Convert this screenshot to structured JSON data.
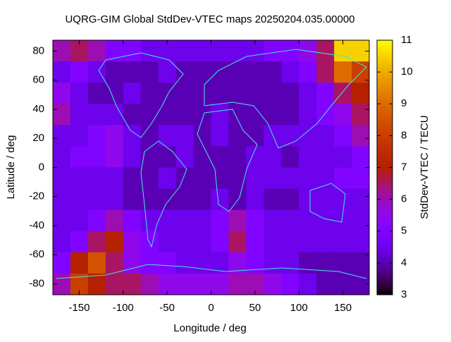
{
  "chart_data": {
    "type": "heatmap",
    "title": "UQRG-GIM Global StdDev-VTEC maps 20250204.035.00000",
    "x_label": "Longitude / deg",
    "y_label": "Latitude / deg",
    "colorbar_label": "StdDev-VTEC / TECU",
    "x": [
      -180,
      -160,
      -140,
      -120,
      -100,
      -80,
      -60,
      -40,
      -20,
      0,
      20,
      40,
      60,
      80,
      100,
      120,
      140,
      160,
      180
    ],
    "y": [
      87.5,
      72.9,
      58.3,
      43.75,
      29.2,
      14.6,
      0,
      -14.6,
      -29.2,
      -43.75,
      -58.3,
      -72.9,
      -87.5
    ],
    "z": [
      [
        6,
        6.5,
        6,
        5,
        5,
        4.5,
        4.5,
        4.5,
        4.5,
        4.5,
        4.5,
        4.5,
        5,
        5,
        5.5,
        6.5,
        10.5,
        10.5
      ],
      [
        4.5,
        5,
        4.5,
        4,
        4,
        4,
        4.5,
        4,
        4,
        4,
        4,
        4,
        4,
        4.5,
        5,
        6.5,
        9,
        8
      ],
      [
        5.5,
        4.5,
        4,
        4,
        4.5,
        4,
        4,
        4,
        4,
        4,
        4,
        4,
        4,
        4,
        4.5,
        5,
        6.5,
        7
      ],
      [
        6,
        4.5,
        4.5,
        4.5,
        4,
        4,
        4,
        4,
        4,
        4.5,
        4,
        4,
        4,
        4,
        4.5,
        5,
        5.5,
        6.5
      ],
      [
        4.5,
        4.5,
        5,
        5.5,
        4.5,
        4,
        4.5,
        4.5,
        4,
        4.5,
        4,
        4,
        4.5,
        4.5,
        4.5,
        4.5,
        5,
        6
      ],
      [
        4.5,
        5,
        5,
        5.5,
        4.5,
        4,
        4,
        4.5,
        4,
        4,
        4,
        4.5,
        4.5,
        4,
        4.5,
        4.5,
        4.5,
        5
      ],
      [
        4.5,
        4.5,
        4.5,
        4.5,
        4,
        4,
        4.5,
        4,
        4,
        4,
        4,
        4.5,
        4.5,
        4.5,
        4.5,
        4.5,
        5,
        5
      ],
      [
        4.5,
        4.5,
        4.5,
        4.5,
        4,
        4,
        4,
        4,
        4,
        4.5,
        4,
        4.5,
        4,
        4,
        4.5,
        4.5,
        4.5,
        4.5
      ],
      [
        4.5,
        4.5,
        5,
        6,
        5,
        4.5,
        4.5,
        4.5,
        4.5,
        5,
        6,
        5,
        4.5,
        4.5,
        4.5,
        4.5,
        4.5,
        4.5
      ],
      [
        4.5,
        5,
        6.5,
        7,
        5.5,
        5,
        4.5,
        4.5,
        4.5,
        5,
        6.5,
        5,
        4.5,
        4.5,
        4.5,
        4.5,
        4.5,
        4.5
      ],
      [
        5,
        7,
        8.5,
        6.5,
        5.5,
        5,
        5,
        4.5,
        4.5,
        4.5,
        5.5,
        5,
        4.5,
        4.5,
        4,
        4,
        4,
        4
      ],
      [
        6,
        8,
        7,
        6.5,
        6.5,
        6,
        5.5,
        5.5,
        5.5,
        5.5,
        6,
        6,
        5.5,
        5,
        4.5,
        4,
        4,
        4
      ]
    ],
    "xlim": [
      -180,
      180
    ],
    "ylim": [
      -87.5,
      87.5
    ],
    "xticks": [
      -150,
      -100,
      -50,
      0,
      50,
      100,
      150
    ],
    "yticks": [
      -80,
      -60,
      -40,
      -20,
      0,
      20,
      40,
      60,
      80
    ],
    "clim": [
      3,
      11
    ],
    "cticks": [
      3,
      4,
      5,
      6,
      7,
      8,
      9,
      10,
      11
    ],
    "palette": "gnuplot-7-5-15"
  }
}
